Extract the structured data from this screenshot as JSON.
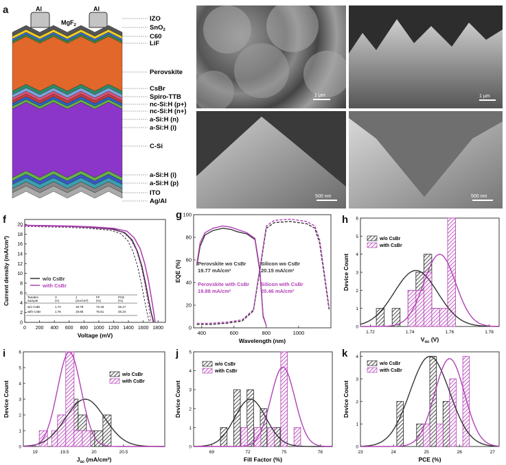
{
  "panels": {
    "a": {
      "label": "a",
      "top_labels": [
        "Al",
        "MgF",
        "2",
        "Al"
      ],
      "layers_top": [
        "IZO",
        "SnO",
        "2",
        "C60",
        "LiF",
        "Perovskite",
        "CsBr",
        "Spiro-TTB",
        "nc-Si:H (p+)",
        "nc-Si:H (n+)",
        "a-Si:H (n)",
        "a-Si:H (i)",
        "C-Si",
        "a-Si:H (i)",
        "a-Si:H (p)",
        "ITO",
        "Ag/Al"
      ],
      "colors": {
        "perovskite": "#e1672a",
        "csi": "#8b36c8",
        "metal": "#bdbdbd"
      }
    },
    "b": {
      "label": "b",
      "scale": "1 μm"
    },
    "c": {
      "label": "c",
      "scale": "1 μm"
    },
    "d": {
      "label": "d",
      "scale": "500 nm"
    },
    "e": {
      "label": "e",
      "scale": "500 nm"
    },
    "f": {
      "label": "f"
    },
    "g": {
      "label": "g"
    },
    "h": {
      "label": "h"
    },
    "i": {
      "label": "i"
    },
    "j": {
      "label": "j"
    },
    "k": {
      "label": "k"
    }
  },
  "colors": {
    "wo": "#333333",
    "with": "#b23fb5"
  },
  "chart_data": [
    {
      "id": "f",
      "type": "line",
      "xlabel": "Voltage (mV)",
      "ylabel": "Current density (mA/cm²)",
      "xlim": [
        0,
        1900
      ],
      "ylim": [
        0,
        21
      ],
      "xticks": [
        0,
        200,
        400,
        600,
        800,
        1000,
        1200,
        1400,
        1600,
        1800
      ],
      "yticks": [
        0,
        2,
        4,
        6,
        8,
        10,
        12,
        14,
        16,
        18,
        20
      ],
      "legend": [
        "w/o CsBr",
        "with CsBr"
      ],
      "series": [
        {
          "name": "w/o CsBr",
          "x": [
            0,
            300,
            600,
            900,
            1200,
            1350,
            1450,
            1520,
            1580,
            1630,
            1680,
            1710,
            1740
          ],
          "y": [
            19.8,
            19.7,
            19.6,
            19.4,
            19.0,
            18.3,
            16.8,
            14.5,
            11.5,
            8.0,
            4.0,
            1.8,
            0
          ]
        },
        {
          "name": "with CsBr",
          "x": [
            0,
            300,
            600,
            900,
            1200,
            1380,
            1480,
            1560,
            1620,
            1670,
            1710,
            1740,
            1760
          ],
          "y": [
            19.8,
            19.75,
            19.65,
            19.5,
            19.2,
            18.6,
            17.2,
            15.0,
            12.0,
            8.5,
            5.0,
            2.2,
            0
          ]
        }
      ],
      "table": {
        "headers": [
          "Tandem",
          "V",
          "J",
          "FF",
          "PCE"
        ],
        "subheaders": [
          "Sample",
          "(V)",
          "(mA/cm²)",
          "(%)",
          "(%)"
        ],
        "rows": [
          [
            "w/o CsBr",
            "1.74",
            "19.78",
            "72.18",
            "25.17"
          ],
          [
            "with CsBr",
            "1.76",
            "19.85",
            "75.51",
            "26.24"
          ]
        ]
      }
    },
    {
      "id": "g",
      "type": "line",
      "xlabel": "Wavelength (nm)",
      "ylabel": "EQE (%)",
      "xlim": [
        350,
        1200
      ],
      "ylim": [
        0,
        100
      ],
      "xticks": [
        400,
        600,
        800,
        1000
      ],
      "yticks": [
        0,
        20,
        40,
        60,
        80,
        100
      ],
      "annotations": [
        {
          "text": "Perovskite wo CsBr",
          "value": "19.77 mA/cm²",
          "series": "wo"
        },
        {
          "text": "Perovskite with CsBr",
          "value": "19.88 mA/cm²",
          "series": "with"
        },
        {
          "text": "Silicon wo CsBr",
          "value": "20.15 mA/cm²",
          "series": "wo"
        },
        {
          "text": "Silicon with CsBr",
          "value": "20.46 mA/cm²",
          "series": "with"
        }
      ],
      "series": [
        {
          "name": "Perovskite wo CsBr",
          "x": [
            370,
            390,
            420,
            470,
            530,
            580,
            620,
            680,
            730,
            760,
            780,
            800
          ],
          "y": [
            55,
            72,
            82,
            86,
            88,
            87,
            85,
            83,
            78,
            50,
            10,
            2
          ]
        },
        {
          "name": "Perovskite with CsBr",
          "x": [
            370,
            390,
            420,
            470,
            530,
            580,
            620,
            680,
            730,
            760,
            780,
            800
          ],
          "y": [
            57,
            75,
            84,
            88,
            90,
            89,
            87,
            84,
            79,
            52,
            11,
            2
          ]
        },
        {
          "name": "Silicon wo CsBr",
          "x": [
            370,
            450,
            550,
            650,
            720,
            770,
            800,
            850,
            950,
            1050,
            1100,
            1130,
            1160,
            1190
          ],
          "y": [
            3,
            3,
            4,
            6,
            15,
            60,
            88,
            93,
            94,
            92,
            88,
            75,
            45,
            15
          ]
        },
        {
          "name": "Silicon with CsBr",
          "x": [
            370,
            450,
            550,
            650,
            720,
            770,
            800,
            850,
            950,
            1050,
            1100,
            1130,
            1160,
            1190
          ],
          "y": [
            4,
            4,
            5,
            7,
            16,
            62,
            90,
            95,
            96,
            94,
            90,
            78,
            48,
            17
          ]
        }
      ]
    },
    {
      "id": "h",
      "type": "bar",
      "xlabel": "V",
      "xlabel_sub": "oc",
      "xunit": "(V)",
      "ylabel": "Device Count",
      "xlim": [
        1.715,
        1.785
      ],
      "ylim": [
        0,
        6
      ],
      "xticks": [
        1.72,
        1.74,
        1.76,
        1.78
      ],
      "yticks": [
        0,
        1,
        2,
        3,
        4,
        5,
        6
      ],
      "binwidth": 0.004,
      "legend": [
        "w/o CsBr",
        "with CsBr"
      ],
      "series": [
        {
          "name": "w/o CsBr",
          "x": [
            1.725,
            1.733,
            1.741,
            1.745,
            1.749,
            1.753
          ],
          "y": [
            1,
            1,
            2,
            3,
            4,
            1
          ],
          "fit": {
            "mu": 1.743,
            "sigma": 0.011,
            "peak": 3.1
          }
        },
        {
          "name": "with CsBr",
          "x": [
            1.741,
            1.745,
            1.749,
            1.753,
            1.757,
            1.761
          ],
          "y": [
            2,
            2,
            3,
            1,
            1,
            6
          ],
          "fit": {
            "mu": 1.755,
            "sigma": 0.008,
            "peak": 4.0
          }
        }
      ]
    },
    {
      "id": "i",
      "type": "bar",
      "xlabel": "J",
      "xlabel_sub": "sc",
      "xunit": "(mA/cm²)",
      "ylabel": "Device Count",
      "xlim": [
        18.8,
        21.2
      ],
      "ylim": [
        0,
        6
      ],
      "xticks": [
        19,
        19.5,
        20,
        20.5
      ],
      "xtick_labels": [
        "19",
        "19.5",
        "20",
        "20.5"
      ],
      "yticks": [
        0,
        1,
        2,
        3,
        4,
        5,
        6
      ],
      "binwidth": 0.14,
      "legend": [
        "w/o CsBr",
        "with CsBr"
      ],
      "series": [
        {
          "name": "w/o CsBr",
          "x": [
            19.52,
            19.66,
            19.8,
            19.94,
            20.08,
            20.22
          ],
          "y": [
            2,
            3,
            2,
            1,
            1,
            2
          ],
          "fit": {
            "mu": 19.85,
            "sigma": 0.33,
            "peak": 3.0
          }
        },
        {
          "name": "with CsBr",
          "x": [
            19.14,
            19.35,
            19.45,
            19.59,
            19.73,
            19.87
          ],
          "y": [
            1,
            1,
            2,
            6,
            1,
            1
          ],
          "fit": {
            "mu": 19.58,
            "sigma": 0.2,
            "peak": 6.0
          }
        }
      ]
    },
    {
      "id": "j",
      "type": "bar",
      "xlabel": "Fill Factor (%)",
      "ylabel": "Device Count",
      "xlim": [
        67.5,
        79
      ],
      "ylim": [
        0,
        5
      ],
      "xticks": [
        69,
        72,
        75,
        78
      ],
      "yticks": [
        0,
        1,
        2,
        3,
        4,
        5
      ],
      "binwidth": 0.55,
      "legend": [
        "w/o CsBr",
        "with CsBr"
      ],
      "series": [
        {
          "name": "w/o CsBr",
          "x": [
            70.0,
            71.1,
            72.2,
            73.3,
            74.4
          ],
          "y": [
            1,
            3,
            3,
            2,
            1
          ],
          "fit": {
            "mu": 72.2,
            "sigma": 1.3,
            "peak": 2.5
          }
        },
        {
          "name": "with CsBr",
          "x": [
            71.7,
            72.8,
            73.9,
            75.0,
            76.1
          ],
          "y": [
            1,
            1,
            1,
            5,
            1
          ],
          "fit": {
            "mu": 74.9,
            "sigma": 1.0,
            "peak": 4.2
          }
        }
      ]
    },
    {
      "id": "k",
      "type": "bar",
      "xlabel": "PCE (%)",
      "ylabel": "Device Count",
      "xlim": [
        23,
        27.2
      ],
      "ylim": [
        0,
        4.2
      ],
      "xticks": [
        23,
        24,
        25,
        26,
        27
      ],
      "yticks": [
        0,
        1,
        2,
        3,
        4
      ],
      "binwidth": 0.2,
      "legend": [
        "w/o CsBr",
        "with CsBr"
      ],
      "series": [
        {
          "name": "w/o CsBr",
          "x": [
            24.2,
            24.8,
            25.2,
            25.6
          ],
          "y": [
            2,
            1,
            4,
            2
          ],
          "fit": {
            "mu": 25.1,
            "sigma": 0.6,
            "peak": 4.0
          }
        },
        {
          "name": "with CsBr",
          "x": [
            25.0,
            25.4,
            25.8,
            26.2
          ],
          "y": [
            1,
            1,
            3,
            4
          ],
          "fit": {
            "mu": 25.7,
            "sigma": 0.45,
            "peak": 3.9
          }
        }
      ]
    }
  ]
}
